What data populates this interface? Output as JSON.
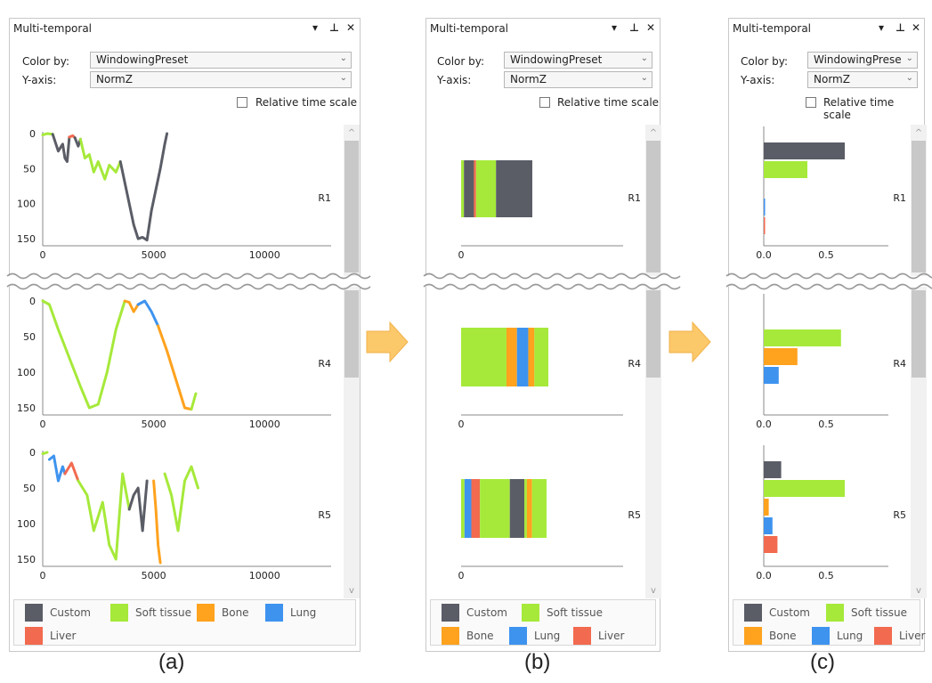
{
  "panel_title": "Multi-temporal",
  "controls": {
    "color_by_label": "Color by:",
    "y_axis_label": "Y-axis:",
    "color_by_value": "WindowingPreset",
    "color_by_value_c": "WindowingPrese",
    "y_axis_value": "NormZ",
    "relative_time_label": "Relative time scale"
  },
  "colors": {
    "Custom": "#5a5d66",
    "Soft tissue": "#a6e93a",
    "Bone": "#ffa21e",
    "Lung": "#3e93ef",
    "Liver": "#f26a4f",
    "arrow": "#fbc86a"
  },
  "legend": [
    "Custom",
    "Soft tissue",
    "Bone",
    "Lung",
    "Liver"
  ],
  "rows": [
    "R1",
    "R4",
    "R5"
  ],
  "captions": [
    "(a)",
    "(b)",
    "(c)"
  ],
  "chart_data": [
    {
      "panel": "(a)",
      "type": "line",
      "xlabel": "",
      "ylabel": "",
      "x_ticks": [
        "0",
        "5000",
        "10000"
      ],
      "y_ticks": [
        "0",
        "50",
        "100",
        "150"
      ],
      "xlim": [
        0,
        13000
      ],
      "ylim": [
        0,
        155
      ],
      "series": [
        {
          "row": "R1",
          "segments": [
            {
              "category": "Soft tissue",
              "x": [
                0,
                200,
                450
              ],
              "y": [
                2,
                0,
                1
              ]
            },
            {
              "category": "Custom",
              "x": [
                450,
                700,
                900,
                1000,
                1100,
                1200
              ],
              "y": [
                1,
                25,
                15,
                35,
                40,
                5
              ]
            },
            {
              "category": "Liver",
              "x": [
                1200,
                1350,
                1450
              ],
              "y": [
                5,
                3,
                6
              ]
            },
            {
              "category": "Custom",
              "x": [
                1450,
                1600,
                1700
              ],
              "y": [
                6,
                18,
                8
              ]
            },
            {
              "category": "Soft tissue",
              "x": [
                1700,
                1900,
                2100,
                2300,
                2500,
                2800,
                3000,
                3300,
                3500
              ],
              "y": [
                8,
                35,
                30,
                55,
                40,
                65,
                45,
                55,
                40
              ]
            },
            {
              "category": "Custom",
              "x": [
                3500,
                3700,
                3900,
                4100,
                4300,
                4500,
                4700,
                4900,
                5100,
                5300,
                5500,
                5600
              ],
              "y": [
                40,
                70,
                100,
                130,
                150,
                148,
                152,
                110,
                80,
                50,
                15,
                0
              ]
            }
          ]
        },
        {
          "row": "R4",
          "segments": [
            {
              "category": "Soft tissue",
              "x": [
                0,
                300,
                700,
                1200,
                1700,
                2100,
                2500,
                2900,
                3300,
                3700
              ],
              "y": [
                0,
                5,
                40,
                80,
                120,
                150,
                145,
                100,
                40,
                0
              ]
            },
            {
              "category": "Bone",
              "x": [
                3700,
                3900,
                4100,
                4300
              ],
              "y": [
                0,
                2,
                15,
                5
              ]
            },
            {
              "category": "Lung",
              "x": [
                4300,
                4600,
                4900,
                5200
              ],
              "y": [
                5,
                0,
                15,
                35
              ]
            },
            {
              "category": "Bone",
              "x": [
                5200,
                5600,
                6000,
                6400,
                6700
              ],
              "y": [
                35,
                70,
                110,
                150,
                152
              ]
            },
            {
              "category": "Soft tissue",
              "x": [
                6700,
                6900
              ],
              "y": [
                152,
                130
              ]
            }
          ]
        },
        {
          "row": "R5",
          "segments": [
            {
              "category": "Soft tissue",
              "x": [
                0,
                200
              ],
              "y": [
                2,
                0
              ]
            },
            {
              "category": "Lung",
              "x": [
                300,
                500,
                700,
                900,
                1000
              ],
              "y": [
                10,
                5,
                40,
                20,
                30
              ]
            },
            {
              "category": "Liver",
              "x": [
                1000,
                1300,
                1600
              ],
              "y": [
                30,
                15,
                40
              ]
            },
            {
              "category": "Soft tissue",
              "x": [
                1600,
                2000,
                2300,
                2700,
                3000,
                3300,
                3600,
                3900
              ],
              "y": [
                40,
                60,
                110,
                70,
                130,
                150,
                30,
                80
              ]
            },
            {
              "category": "Custom",
              "x": [
                3900,
                4100,
                4300,
                4500,
                4700
              ],
              "y": [
                80,
                60,
                50,
                110,
                40
              ]
            },
            {
              "category": "Bone",
              "x": [
                5000,
                5100,
                5200,
                5300
              ],
              "y": [
                40,
                80,
                130,
                155
              ]
            },
            {
              "category": "Soft tissue",
              "x": [
                5500,
                5800,
                6100,
                6400,
                6700,
                7000
              ],
              "y": [
                30,
                60,
                110,
                40,
                20,
                50
              ]
            }
          ]
        }
      ]
    },
    {
      "panel": "(b)",
      "type": "bar",
      "x_ticks": [
        "0"
      ],
      "series": [
        {
          "row": "R1",
          "stack": [
            [
              "Soft tissue",
              0.04
            ],
            [
              "Custom",
              0.14
            ],
            [
              "Liver",
              0.03
            ],
            [
              "Soft tissue",
              0.28
            ],
            [
              "Custom",
              0.51
            ]
          ]
        },
        {
          "row": "R4",
          "stack": [
            [
              "Soft tissue",
              0.52
            ],
            [
              "Bone",
              0.12
            ],
            [
              "Lung",
              0.13
            ],
            [
              "Bone",
              0.07
            ],
            [
              "Soft tissue",
              0.16
            ]
          ]
        },
        {
          "row": "R5",
          "stack": [
            [
              "Soft tissue",
              0.04
            ],
            [
              "Lung",
              0.08
            ],
            [
              "Liver",
              0.1
            ],
            [
              "Soft tissue",
              0.35
            ],
            [
              "Custom",
              0.17
            ],
            [
              "Soft tissue",
              0.03
            ],
            [
              "Bone",
              0.06
            ],
            [
              "Soft tissue",
              0.17
            ]
          ]
        }
      ]
    },
    {
      "panel": "(c)",
      "type": "bar",
      "x_ticks": [
        "0.0",
        "0.5"
      ],
      "xlim": [
        0,
        1.0
      ],
      "categories": [
        "Custom",
        "Soft tissue",
        "Bone",
        "Lung",
        "Liver"
      ],
      "series": [
        {
          "row": "R1",
          "values": [
            0.65,
            0.35,
            0,
            0.01,
            0.01
          ]
        },
        {
          "row": "R4",
          "values": [
            0,
            0.62,
            0.27,
            0.12,
            0
          ]
        },
        {
          "row": "R5",
          "values": [
            0.14,
            0.65,
            0.04,
            0.07,
            0.11
          ]
        }
      ]
    }
  ]
}
